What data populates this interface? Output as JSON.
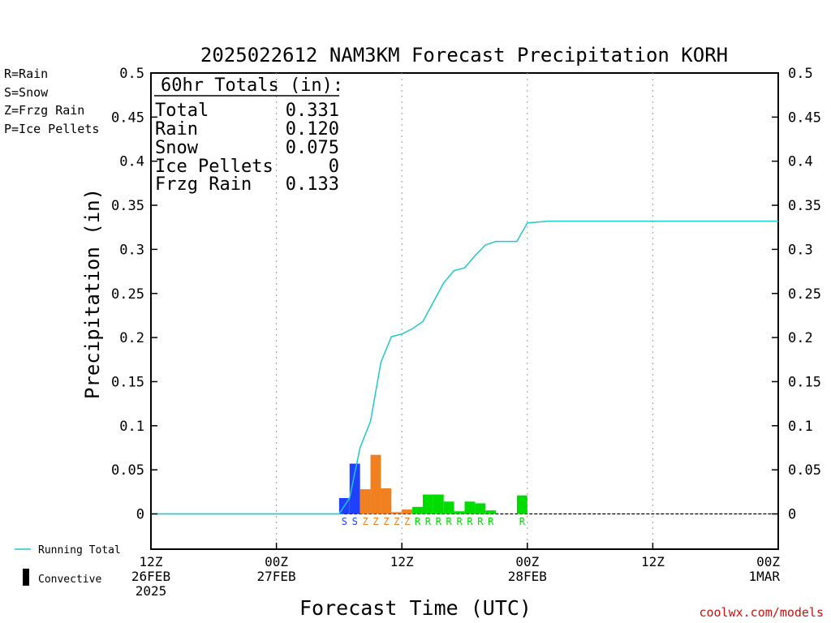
{
  "title": "2025022612 NAM3KM Forecast Precipitation KORH",
  "colors": {
    "rain": "#00dc00",
    "snow": "#2040ff",
    "frzg": "#f08020",
    "ice": "#e01090",
    "running_total": "#20c8c8",
    "credit": "#d01010"
  },
  "type_legend": [
    {
      "label": "R=Rain",
      "color": "#00dc00"
    },
    {
      "label": "S=Snow",
      "color": "#2040ff"
    },
    {
      "label": "Z=Frzg Rain",
      "color": "#f08020"
    },
    {
      "label": "P=Ice Pellets",
      "color": "#e01090"
    }
  ],
  "totals": {
    "header": "60hr Totals (in):",
    "rows": [
      {
        "label": "Total",
        "value": "0.331"
      },
      {
        "label": "Rain",
        "value": "0.120"
      },
      {
        "label": "Snow",
        "value": "0.075"
      },
      {
        "label": "Ice Pellets",
        "value": "0"
      },
      {
        "label": "Frzg Rain",
        "value": "0.133"
      }
    ]
  },
  "bottom_legend": {
    "running_total": "Running Total",
    "convective": "Convective"
  },
  "credit": "coolwx.com/models",
  "chart_data": {
    "type": "bar",
    "xlabel": "Forecast Time (UTC)",
    "ylabel": "Precipitation (in)",
    "ylim": [
      -0.04,
      0.5
    ],
    "yticks": [
      "0",
      "0.05",
      "0.1",
      "0.15",
      "0.2",
      "0.25",
      "0.3",
      "0.35",
      "0.4",
      "0.45",
      "0.5"
    ],
    "xlim_hours": [
      0,
      60
    ],
    "x_ticks": [
      {
        "hour": 0,
        "lines": [
          "12Z",
          "26FEB",
          "2025"
        ]
      },
      {
        "hour": 12,
        "lines": [
          "00Z",
          "27FEB"
        ]
      },
      {
        "hour": 24,
        "lines": [
          "12Z"
        ]
      },
      {
        "hour": 36,
        "lines": [
          "00Z",
          "28FEB"
        ]
      },
      {
        "hour": 48,
        "lines": [
          "12Z"
        ]
      },
      {
        "hour": 60,
        "lines": [
          "00Z",
          "1MAR"
        ]
      }
    ],
    "grid": "vertical-dotted",
    "bars": [
      {
        "hour": 19,
        "value": 0.018,
        "ptype": "S"
      },
      {
        "hour": 20,
        "value": 0.057,
        "ptype": "S"
      },
      {
        "hour": 21,
        "value": 0.028,
        "ptype": "Z"
      },
      {
        "hour": 22,
        "value": 0.067,
        "ptype": "Z"
      },
      {
        "hour": 23,
        "value": 0.029,
        "ptype": "Z"
      },
      {
        "hour": 24,
        "value": 0.002,
        "ptype": "Z"
      },
      {
        "hour": 25,
        "value": 0.005,
        "ptype": "Z"
      },
      {
        "hour": 26,
        "value": 0.008,
        "ptype": "R"
      },
      {
        "hour": 27,
        "value": 0.022,
        "ptype": "R"
      },
      {
        "hour": 28,
        "value": 0.022,
        "ptype": "R"
      },
      {
        "hour": 29,
        "value": 0.014,
        "ptype": "R"
      },
      {
        "hour": 30,
        "value": 0.003,
        "ptype": "R"
      },
      {
        "hour": 31,
        "value": 0.014,
        "ptype": "R"
      },
      {
        "hour": 32,
        "value": 0.012,
        "ptype": "R"
      },
      {
        "hour": 33,
        "value": 0.004,
        "ptype": "R"
      },
      {
        "hour": 36,
        "value": 0.021,
        "ptype": "R"
      }
    ],
    "running_total": [
      [
        0,
        0
      ],
      [
        18,
        0
      ],
      [
        19,
        0.018
      ],
      [
        20,
        0.075
      ],
      [
        21,
        0.105
      ],
      [
        22,
        0.172
      ],
      [
        23,
        0.201
      ],
      [
        24,
        0.204
      ],
      [
        25,
        0.21
      ],
      [
        26,
        0.218
      ],
      [
        27,
        0.24
      ],
      [
        28,
        0.262
      ],
      [
        29,
        0.276
      ],
      [
        30,
        0.279
      ],
      [
        31,
        0.293
      ],
      [
        32,
        0.305
      ],
      [
        33,
        0.309
      ],
      [
        35,
        0.309
      ],
      [
        36,
        0.33
      ],
      [
        37,
        0.331
      ],
      [
        38,
        0.332
      ],
      [
        60,
        0.332
      ]
    ]
  }
}
